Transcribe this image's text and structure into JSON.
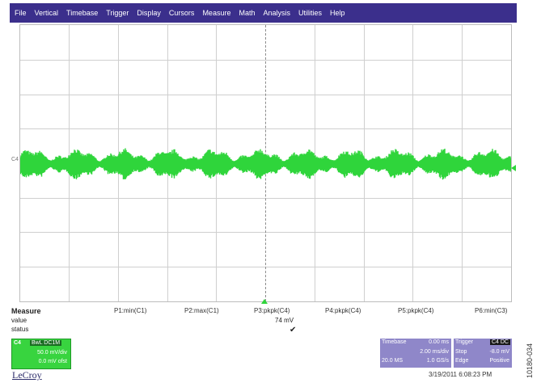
{
  "menu": [
    "File",
    "Vertical",
    "Timebase",
    "Trigger",
    "Display",
    "Cursors",
    "Measure",
    "Math",
    "Analysis",
    "Utilities",
    "Help"
  ],
  "trace": {
    "channel_label": "C4",
    "color": "#2fd53b"
  },
  "measure": {
    "heading": "Measure",
    "row_value": "value",
    "row_status": "status",
    "params": [
      {
        "label": "P1:min(C1)",
        "value": "",
        "status": ""
      },
      {
        "label": "P2:max(C1)",
        "value": "",
        "status": ""
      },
      {
        "label": "P3:pkpk(C4)",
        "value": "74 mV",
        "status": "✔"
      },
      {
        "label": "P4:pkpk(C4)",
        "value": "",
        "status": ""
      },
      {
        "label": "P5:pkpk(C4)",
        "value": "",
        "status": ""
      },
      {
        "label": "P6:min(C3)",
        "value": "",
        "status": ""
      }
    ]
  },
  "channel_box": {
    "name": "C4",
    "coupling": "BwL DC1M",
    "vdiv": "50.0 mV/div",
    "offset": "0.0 mV ofst",
    "color": "#38d43f"
  },
  "logo": "LeCroy",
  "timebase": {
    "label": "Timebase",
    "delay": "0.00 ms",
    "tdiv": "2.00 ms/div",
    "samples": "20.0 MS",
    "rate": "1.0 GS/s"
  },
  "trigger": {
    "label": "Trigger",
    "channel": "C4 DC",
    "mode": "Stop",
    "level": "-8.0 mV",
    "type": "Edge",
    "slope": "Positive"
  },
  "datetime": "3/19/2011 6:08:23 PM",
  "figure_id": "10180-034"
}
